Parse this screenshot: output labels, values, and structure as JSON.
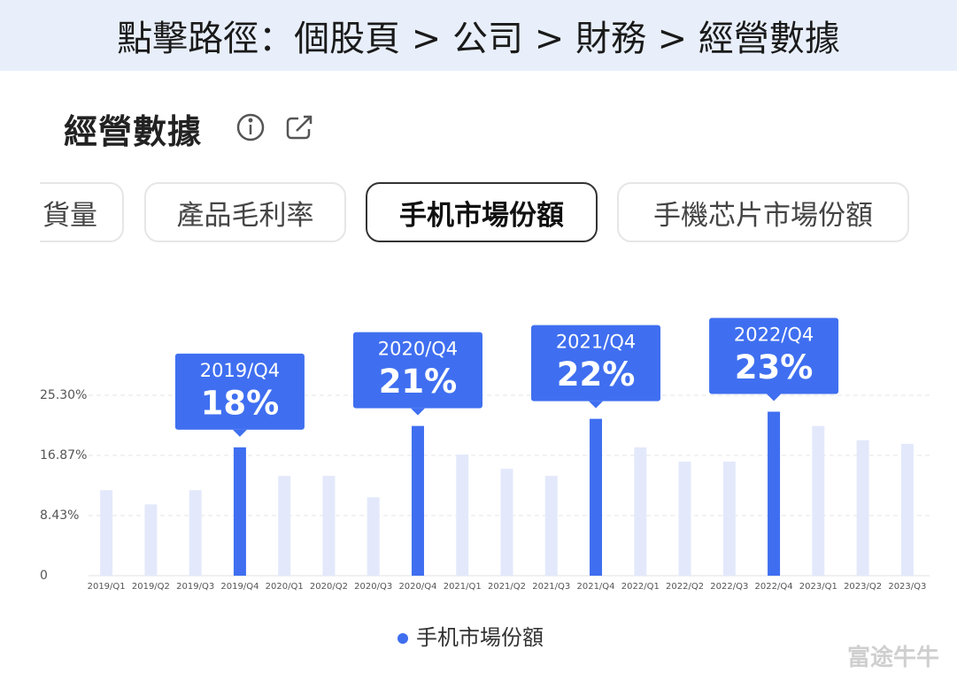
{
  "header": {
    "breadcrumb": "點擊路徑：個股頁 > 公司 >  財務 > 經營數據"
  },
  "section_title": "經營數據",
  "tabs": [
    "貨量",
    "產品毛利率",
    "手机市場份額",
    "手機芯片市場份額"
  ],
  "selected_tab": 2,
  "chart_data": {
    "type": "bar",
    "categories": [
      "2019/Q1",
      "2019/Q2",
      "2019/Q3",
      "2019/Q4",
      "2020/Q1",
      "2020/Q2",
      "2020/Q3",
      "2020/Q4",
      "2021/Q1",
      "2021/Q2",
      "2021/Q3",
      "2021/Q4",
      "2022/Q1",
      "2022/Q2",
      "2022/Q3",
      "2022/Q4",
      "2023/Q1",
      "2023/Q2",
      "2023/Q3"
    ],
    "series": [
      {
        "name": "手机市場份額",
        "color": "#3f6ff0",
        "values": [
          12,
          10,
          12,
          18,
          14,
          14,
          11,
          21,
          17,
          15,
          14,
          22,
          18,
          16,
          16,
          23,
          21,
          19,
          18.5
        ],
        "value_labels": [
          null,
          null,
          null,
          "18%",
          null,
          null,
          null,
          "21%",
          null,
          null,
          null,
          "22%",
          null,
          null,
          null,
          "23%",
          null,
          null,
          null
        ],
        "colors": [
          "#e3e9fb",
          "#e3e9fb",
          "#e3e9fb",
          "#3f6ff0",
          "#e3e9fb",
          "#e3e9fb",
          "#e3e9fb",
          "#3f6ff0",
          "#e3e9fb",
          "#e3e9fb",
          "#e3e9fb",
          "#3f6ff0",
          "#e3e9fb",
          "#e3e9fb",
          "#e3e9fb",
          "#3f6ff0",
          "#e3e9fb",
          "#e3e9fb",
          "#e3e9fb"
        ]
      }
    ],
    "ylim": [
      0,
      25.3
    ],
    "yticks": [
      0,
      {
        "value": 8.43,
        "label": "8.43%"
      },
      {
        "value": 16.87,
        "label": "16.87%"
      },
      {
        "value": 25.3,
        "label": "25.30%"
      }
    ],
    "grid": true
  },
  "watermark": "富途牛牛"
}
